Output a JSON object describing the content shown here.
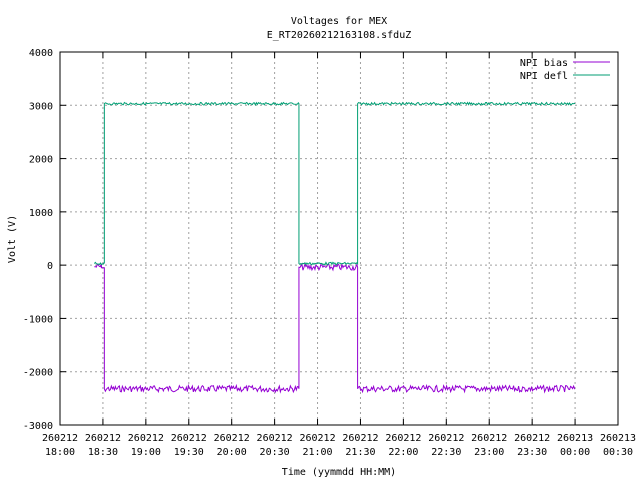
{
  "chart_data": {
    "type": "line",
    "title": "Voltages for MEX",
    "subtitle": "E_RT20260212163108.sfduZ",
    "xlabel": "Time (yymmdd HH:MM)",
    "ylabel": "Volt (V)",
    "ylim": [
      -3000,
      4000
    ],
    "xlim": [
      "2026-02-12 18:00",
      "2026-02-13 00:30"
    ],
    "grid": true,
    "legend_position": "top-right",
    "yticks": [
      "4000",
      "3000",
      "2000",
      "1000",
      "0",
      "-1000",
      "-2000",
      "-3000"
    ],
    "xticks": [
      {
        "date": "260212",
        "time": "18:00"
      },
      {
        "date": "260212",
        "time": "18:30"
      },
      {
        "date": "260212",
        "time": "19:00"
      },
      {
        "date": "260212",
        "time": "19:30"
      },
      {
        "date": "260212",
        "time": "20:00"
      },
      {
        "date": "260212",
        "time": "20:30"
      },
      {
        "date": "260212",
        "time": "21:00"
      },
      {
        "date": "260212",
        "time": "21:30"
      },
      {
        "date": "260212",
        "time": "22:00"
      },
      {
        "date": "260212",
        "time": "22:30"
      },
      {
        "date": "260212",
        "time": "23:00"
      },
      {
        "date": "260212",
        "time": "23:30"
      },
      {
        "date": "260213",
        "time": "00:00"
      },
      {
        "date": "260213",
        "time": "00:30"
      }
    ],
    "series": [
      {
        "name": "NPI bias",
        "color": "#9400d3",
        "points": [
          [
            "2026-02-12 18:24",
            -30
          ],
          [
            "2026-02-12 18:29",
            -30
          ],
          [
            "2026-02-12 18:29",
            -50
          ],
          [
            "2026-02-12 18:31",
            -50
          ],
          [
            "2026-02-12 18:31",
            -2320
          ],
          [
            "2026-02-12 20:47",
            -2320
          ],
          [
            "2026-02-12 20:47",
            -40
          ],
          [
            "2026-02-12 21:28",
            -40
          ],
          [
            "2026-02-12 21:28",
            -2320
          ],
          [
            "2026-02-13 00:00",
            -2320
          ]
        ]
      },
      {
        "name": "NPI defl",
        "color": "#009e73",
        "points": [
          [
            "2026-02-12 18:24",
            30
          ],
          [
            "2026-02-12 18:31",
            30
          ],
          [
            "2026-02-12 18:31",
            3030
          ],
          [
            "2026-02-12 20:47",
            3030
          ],
          [
            "2026-02-12 20:47",
            30
          ],
          [
            "2026-02-12 21:28",
            30
          ],
          [
            "2026-02-12 21:28",
            3030
          ],
          [
            "2026-02-13 00:00",
            3030
          ]
        ]
      }
    ]
  }
}
